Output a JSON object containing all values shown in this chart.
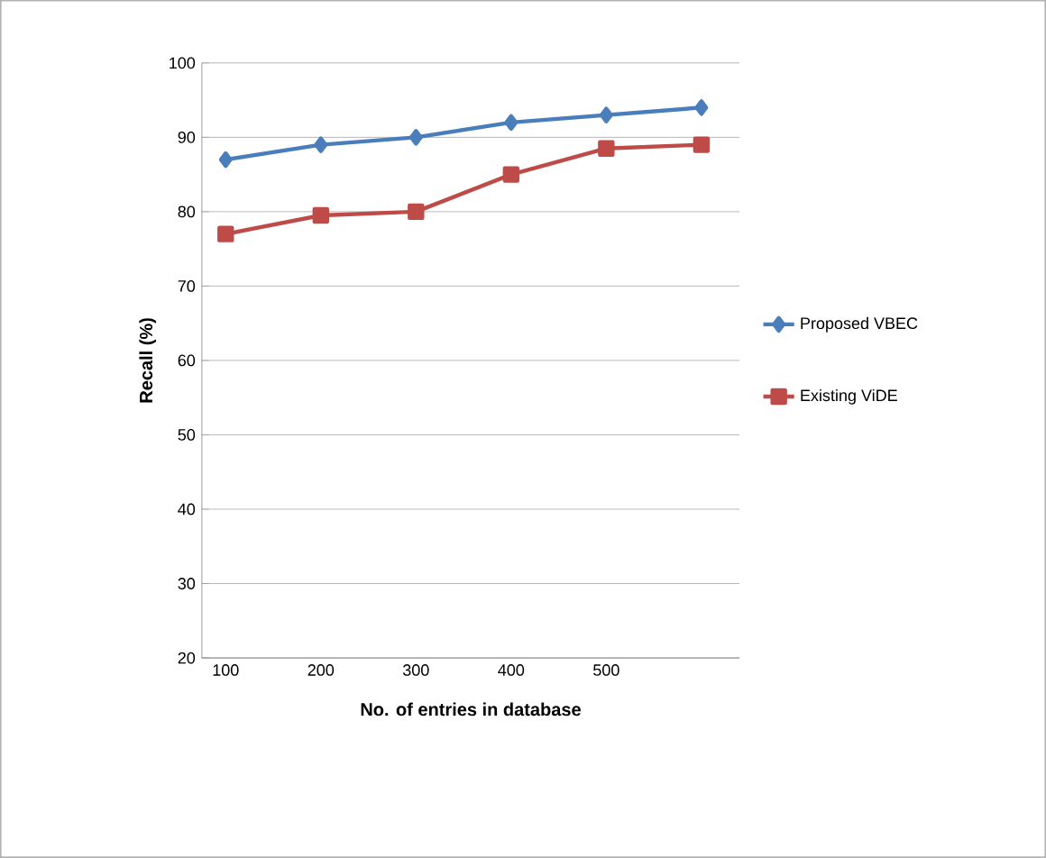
{
  "chart_data": {
    "type": "line",
    "xlabel": "No. of entries in database",
    "ylabel": "Recall (%)",
    "categories": [
      "100",
      "200",
      "300",
      "400",
      "500",
      null
    ],
    "series": [
      {
        "name": "Proposed VBEC",
        "color": "#4a7ebb",
        "marker": "diamond",
        "values": [
          87,
          89,
          90,
          92,
          93,
          94
        ]
      },
      {
        "name": "Existing ViDE",
        "color": "#be4b48",
        "marker": "square",
        "values": [
          77,
          79.5,
          80,
          85,
          88.5,
          89
        ]
      }
    ],
    "ylim": [
      20,
      100
    ],
    "yticks": [
      20,
      30,
      40,
      50,
      60,
      70,
      80,
      90,
      100
    ],
    "grid": "y",
    "legend": "right"
  }
}
